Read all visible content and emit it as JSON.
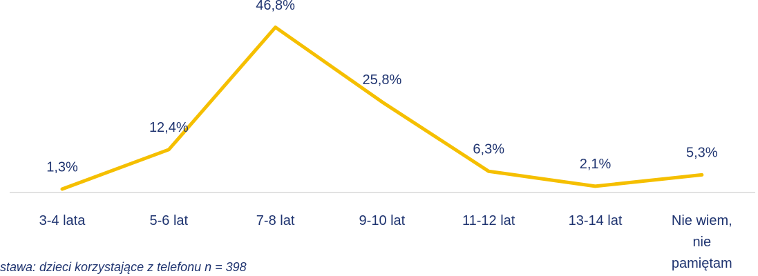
{
  "chart_data": {
    "type": "line",
    "categories": [
      "3-4 lata",
      "5-6 lat",
      "7-8 lat",
      "9-10 lat",
      "11-12 lat",
      "13-14 lat",
      "Nie wiem, nie pamiętam"
    ],
    "series": [
      {
        "name": null,
        "color": "#f5bf00",
        "values": [
          1.3,
          12.4,
          46.8,
          25.8,
          6.3,
          2.1,
          5.3
        ],
        "value_labels": [
          "1,3%",
          "12,4%",
          "46,8%",
          "25,8%",
          "6,3%",
          "2,1%",
          "5,3%"
        ]
      }
    ],
    "ylim": [
      0,
      50
    ],
    "footnote": "stawa: dzieci korzystające z telefonu n = 398"
  }
}
